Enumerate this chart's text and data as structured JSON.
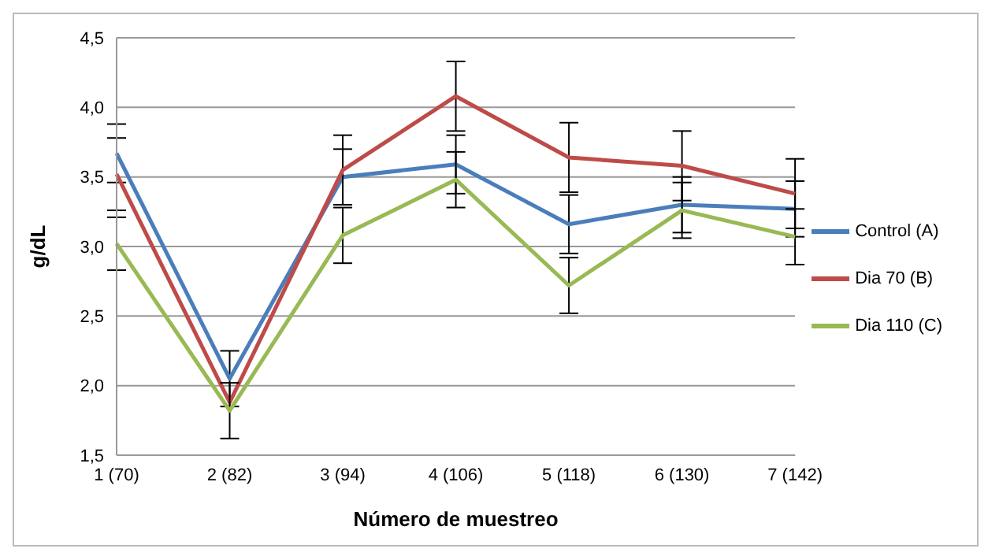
{
  "chart_data": {
    "type": "line",
    "xlabel": "Número de muestreo",
    "ylabel": "g/dL",
    "categories": [
      "1 (70)",
      "2 (82)",
      "3 (94)",
      "4 (106)",
      "5 (118)",
      "6 (130)",
      "7 (142)"
    ],
    "series": [
      {
        "name": "Control (A)",
        "color": "#4a7ebb",
        "values": [
          3.67,
          2.05,
          3.5,
          3.59,
          3.16,
          3.3,
          3.27
        ],
        "errors": [
          0.21,
          0.2,
          0.2,
          0.21,
          0.21,
          0.2,
          0.2
        ]
      },
      {
        "name": "Dia 70 (B)",
        "color": "#be4b48",
        "values": [
          3.52,
          1.88,
          3.55,
          4.08,
          3.64,
          3.58,
          3.38
        ],
        "errors": [
          0.26,
          null,
          0.25,
          0.25,
          0.25,
          0.25,
          0.25
        ]
      },
      {
        "name": "Dia 110 (C)",
        "color": "#98b954",
        "values": [
          3.02,
          1.82,
          3.08,
          3.48,
          2.72,
          3.26,
          3.07
        ],
        "errors": [
          0.19,
          0.2,
          0.2,
          0.2,
          0.2,
          0.2,
          0.2
        ]
      }
    ],
    "ylim": [
      1.5,
      4.5
    ],
    "yticks": [
      {
        "value": 1.5,
        "label": "1,5"
      },
      {
        "value": 2,
        "label": "2,0"
      },
      {
        "value": 2.5,
        "label": "2,5"
      },
      {
        "value": 3,
        "label": "3,0"
      },
      {
        "value": 3.5,
        "label": "3,5"
      },
      {
        "value": 4,
        "label": "4,0"
      },
      {
        "value": 4.5,
        "label": "4,5"
      }
    ],
    "grid": "y",
    "legend": "right",
    "marker": "none",
    "line_style": "solid"
  }
}
